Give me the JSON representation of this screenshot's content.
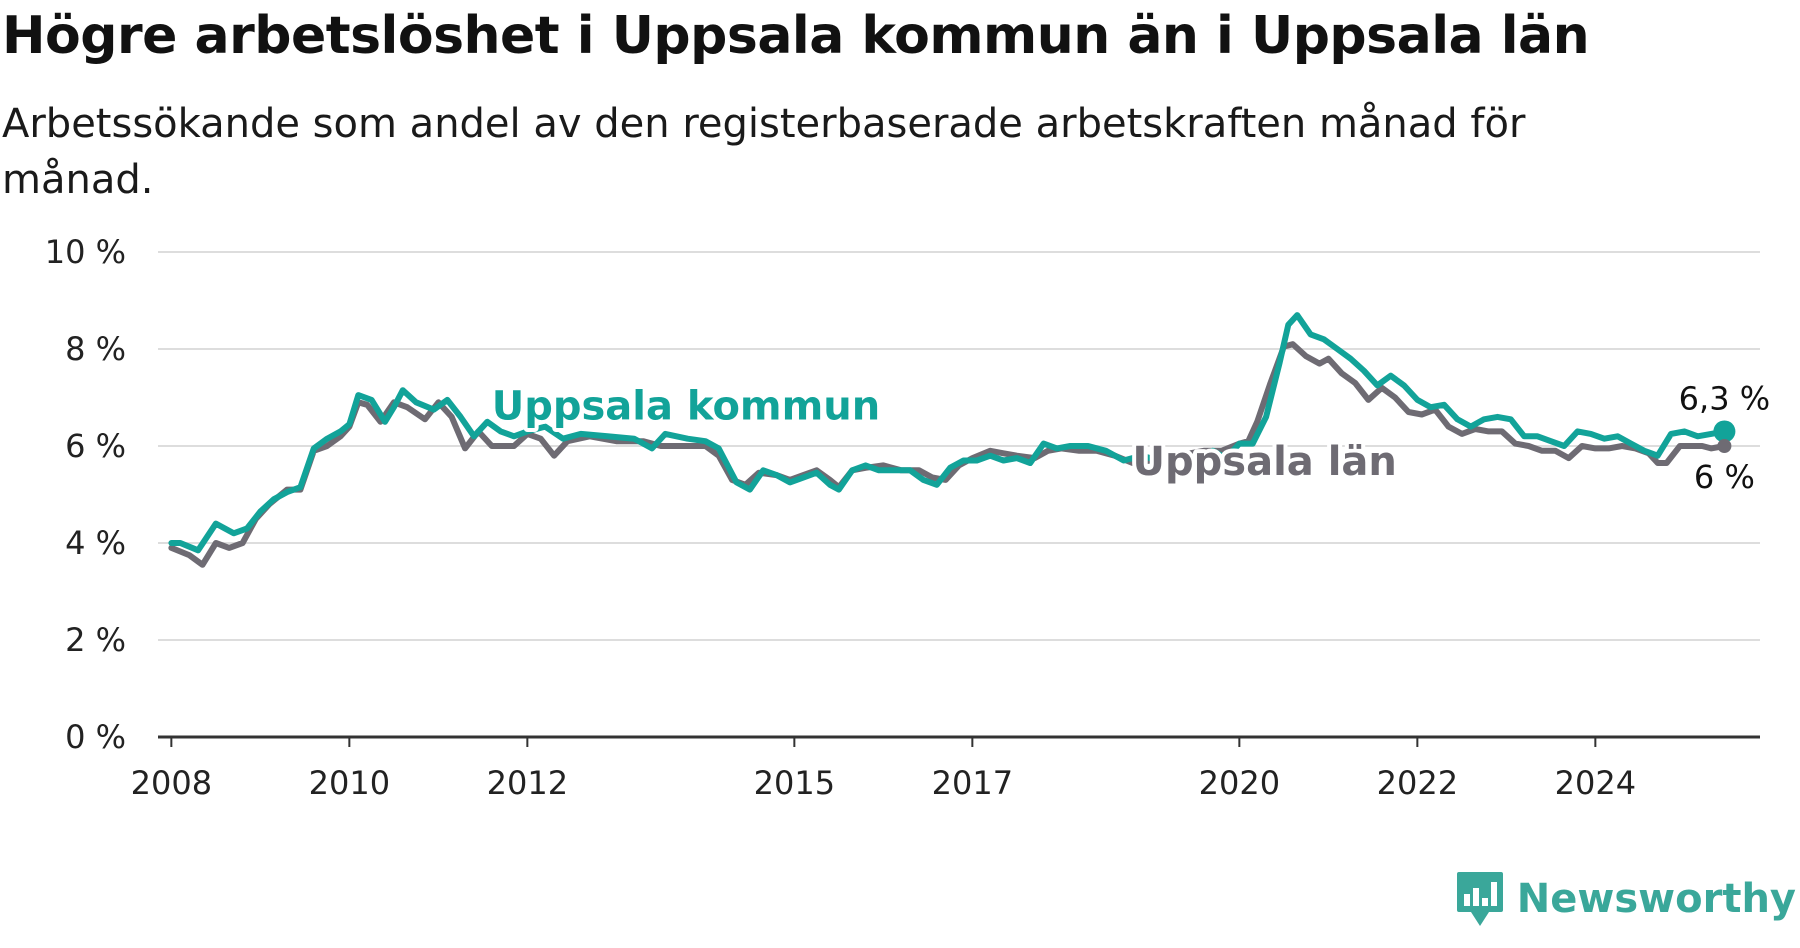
{
  "header": {
    "title": "Högre arbetslöshet i Uppsala kommun än i Uppsala län",
    "subtitle": "Arbetssökande som andel av den registerbaserade arbetskraften månad för månad."
  },
  "brand": {
    "name": "Newsworthy",
    "icon": "newsworthy-logo-icon",
    "color": "#3aa79a"
  },
  "colors": {
    "kommun": "#12a399",
    "lan": "#6e6b73",
    "grid": "#dddddd",
    "axis": "#333333"
  },
  "chart_data": {
    "type": "line",
    "title": "Högre arbetslöshet i Uppsala kommun än i Uppsala län",
    "ylim": [
      0,
      10
    ],
    "xlim": [
      2007.85,
      2025.85
    ],
    "yticks": [
      0,
      2,
      4,
      6,
      8,
      10
    ],
    "ytick_labels": [
      "0 %",
      "2 %",
      "4 %",
      "6 %",
      "8 %",
      "10 %"
    ],
    "xticks": [
      2008,
      2010,
      2012,
      2015,
      2017,
      2020,
      2022,
      2024
    ],
    "xtick_labels": [
      "2008",
      "2010",
      "2012",
      "2015",
      "2017",
      "2020",
      "2022",
      "2024"
    ],
    "grid": true,
    "series": [
      {
        "name": "Uppsala län",
        "end_label": "6 %",
        "points": [
          [
            2008.0,
            3.9
          ],
          [
            2008.2,
            3.75
          ],
          [
            2008.35,
            3.55
          ],
          [
            2008.5,
            4.0
          ],
          [
            2008.65,
            3.9
          ],
          [
            2008.8,
            4.0
          ],
          [
            2008.95,
            4.5
          ],
          [
            2009.1,
            4.8
          ],
          [
            2009.3,
            5.1
          ],
          [
            2009.45,
            5.1
          ],
          [
            2009.6,
            5.9
          ],
          [
            2009.75,
            6.0
          ],
          [
            2009.9,
            6.2
          ],
          [
            2010.0,
            6.4
          ],
          [
            2010.1,
            6.9
          ],
          [
            2010.2,
            6.85
          ],
          [
            2010.35,
            6.5
          ],
          [
            2010.5,
            6.9
          ],
          [
            2010.65,
            6.8
          ],
          [
            2010.85,
            6.55
          ],
          [
            2011.0,
            6.9
          ],
          [
            2011.15,
            6.6
          ],
          [
            2011.3,
            5.95
          ],
          [
            2011.45,
            6.3
          ],
          [
            2011.6,
            6.0
          ],
          [
            2011.85,
            6.0
          ],
          [
            2012.0,
            6.25
          ],
          [
            2012.15,
            6.15
          ],
          [
            2012.3,
            5.8
          ],
          [
            2012.45,
            6.1
          ],
          [
            2012.7,
            6.2
          ],
          [
            2013.0,
            6.1
          ],
          [
            2013.3,
            6.1
          ],
          [
            2013.5,
            6.0
          ],
          [
            2013.8,
            6.0
          ],
          [
            2014.0,
            6.0
          ],
          [
            2014.15,
            5.8
          ],
          [
            2014.3,
            5.3
          ],
          [
            2014.45,
            5.2
          ],
          [
            2014.6,
            5.45
          ],
          [
            2014.8,
            5.4
          ],
          [
            2014.95,
            5.3
          ],
          [
            2015.1,
            5.4
          ],
          [
            2015.25,
            5.5
          ],
          [
            2015.4,
            5.3
          ],
          [
            2015.5,
            5.15
          ],
          [
            2015.65,
            5.5
          ],
          [
            2015.8,
            5.55
          ],
          [
            2016.0,
            5.6
          ],
          [
            2016.2,
            5.5
          ],
          [
            2016.4,
            5.5
          ],
          [
            2016.55,
            5.35
          ],
          [
            2016.7,
            5.3
          ],
          [
            2016.85,
            5.6
          ],
          [
            2017.0,
            5.75
          ],
          [
            2017.2,
            5.9
          ],
          [
            2017.35,
            5.85
          ],
          [
            2017.5,
            5.8
          ],
          [
            2017.7,
            5.75
          ],
          [
            2017.85,
            5.9
          ],
          [
            2018.0,
            5.95
          ],
          [
            2018.2,
            5.9
          ],
          [
            2018.4,
            5.9
          ],
          [
            2018.6,
            5.8
          ],
          [
            2018.8,
            5.65
          ],
          [
            2019.0,
            5.7
          ],
          [
            2019.3,
            5.8
          ],
          [
            2019.6,
            5.9
          ],
          [
            2019.8,
            5.9
          ],
          [
            2020.0,
            6.05
          ],
          [
            2020.1,
            6.1
          ],
          [
            2020.2,
            6.5
          ],
          [
            2020.35,
            7.3
          ],
          [
            2020.5,
            8.05
          ],
          [
            2020.6,
            8.1
          ],
          [
            2020.75,
            7.85
          ],
          [
            2020.9,
            7.7
          ],
          [
            2021.0,
            7.8
          ],
          [
            2021.15,
            7.5
          ],
          [
            2021.3,
            7.3
          ],
          [
            2021.45,
            6.95
          ],
          [
            2021.6,
            7.2
          ],
          [
            2021.75,
            7.0
          ],
          [
            2021.9,
            6.7
          ],
          [
            2022.05,
            6.65
          ],
          [
            2022.2,
            6.75
          ],
          [
            2022.35,
            6.4
          ],
          [
            2022.5,
            6.25
          ],
          [
            2022.65,
            6.35
          ],
          [
            2022.8,
            6.3
          ],
          [
            2022.95,
            6.3
          ],
          [
            2023.1,
            6.05
          ],
          [
            2023.25,
            6.0
          ],
          [
            2023.4,
            5.9
          ],
          [
            2023.55,
            5.9
          ],
          [
            2023.7,
            5.75
          ],
          [
            2023.85,
            6.0
          ],
          [
            2024.0,
            5.95
          ],
          [
            2024.15,
            5.95
          ],
          [
            2024.3,
            6.0
          ],
          [
            2024.45,
            5.95
          ],
          [
            2024.6,
            5.85
          ],
          [
            2024.7,
            5.65
          ],
          [
            2024.8,
            5.65
          ],
          [
            2024.95,
            6.0
          ],
          [
            2025.1,
            6.0
          ],
          [
            2025.2,
            6.0
          ],
          [
            2025.3,
            5.95
          ],
          [
            2025.45,
            6.0
          ]
        ]
      },
      {
        "name": "Uppsala kommun",
        "end_label": "6,3 %",
        "points": [
          [
            2008.0,
            4.0
          ],
          [
            2008.1,
            4.0
          ],
          [
            2008.3,
            3.85
          ],
          [
            2008.5,
            4.4
          ],
          [
            2008.7,
            4.2
          ],
          [
            2008.85,
            4.3
          ],
          [
            2009.0,
            4.65
          ],
          [
            2009.15,
            4.9
          ],
          [
            2009.3,
            5.05
          ],
          [
            2009.45,
            5.15
          ],
          [
            2009.6,
            5.95
          ],
          [
            2009.75,
            6.15
          ],
          [
            2009.9,
            6.3
          ],
          [
            2010.0,
            6.45
          ],
          [
            2010.1,
            7.05
          ],
          [
            2010.25,
            6.95
          ],
          [
            2010.4,
            6.5
          ],
          [
            2010.5,
            6.8
          ],
          [
            2010.6,
            7.15
          ],
          [
            2010.75,
            6.9
          ],
          [
            2010.95,
            6.75
          ],
          [
            2011.1,
            6.95
          ],
          [
            2011.25,
            6.6
          ],
          [
            2011.4,
            6.2
          ],
          [
            2011.55,
            6.5
          ],
          [
            2011.7,
            6.3
          ],
          [
            2011.85,
            6.2
          ],
          [
            2012.0,
            6.3
          ],
          [
            2012.2,
            6.4
          ],
          [
            2012.4,
            6.15
          ],
          [
            2012.6,
            6.25
          ],
          [
            2012.9,
            6.2
          ],
          [
            2013.2,
            6.15
          ],
          [
            2013.4,
            5.95
          ],
          [
            2013.55,
            6.25
          ],
          [
            2013.8,
            6.15
          ],
          [
            2014.0,
            6.1
          ],
          [
            2014.15,
            5.95
          ],
          [
            2014.35,
            5.25
          ],
          [
            2014.5,
            5.1
          ],
          [
            2014.65,
            5.5
          ],
          [
            2014.8,
            5.4
          ],
          [
            2014.95,
            5.25
          ],
          [
            2015.1,
            5.35
          ],
          [
            2015.25,
            5.45
          ],
          [
            2015.4,
            5.2
          ],
          [
            2015.5,
            5.1
          ],
          [
            2015.65,
            5.5
          ],
          [
            2015.8,
            5.6
          ],
          [
            2015.95,
            5.5
          ],
          [
            2016.1,
            5.5
          ],
          [
            2016.3,
            5.5
          ],
          [
            2016.45,
            5.3
          ],
          [
            2016.6,
            5.2
          ],
          [
            2016.75,
            5.55
          ],
          [
            2016.9,
            5.7
          ],
          [
            2017.05,
            5.7
          ],
          [
            2017.2,
            5.8
          ],
          [
            2017.35,
            5.7
          ],
          [
            2017.5,
            5.75
          ],
          [
            2017.65,
            5.65
          ],
          [
            2017.8,
            6.05
          ],
          [
            2017.95,
            5.95
          ],
          [
            2018.1,
            6.0
          ],
          [
            2018.3,
            6.0
          ],
          [
            2018.5,
            5.9
          ],
          [
            2018.7,
            5.7
          ],
          [
            2018.9,
            5.8
          ],
          [
            2019.1,
            5.7
          ],
          [
            2019.3,
            5.8
          ],
          [
            2019.5,
            5.7
          ],
          [
            2019.7,
            5.9
          ],
          [
            2019.85,
            5.75
          ],
          [
            2020.0,
            6.05
          ],
          [
            2020.15,
            6.05
          ],
          [
            2020.3,
            6.6
          ],
          [
            2020.45,
            7.7
          ],
          [
            2020.55,
            8.5
          ],
          [
            2020.65,
            8.7
          ],
          [
            2020.8,
            8.3
          ],
          [
            2020.95,
            8.2
          ],
          [
            2021.1,
            8.0
          ],
          [
            2021.25,
            7.8
          ],
          [
            2021.4,
            7.55
          ],
          [
            2021.55,
            7.25
          ],
          [
            2021.7,
            7.45
          ],
          [
            2021.85,
            7.25
          ],
          [
            2022.0,
            6.95
          ],
          [
            2022.15,
            6.8
          ],
          [
            2022.3,
            6.85
          ],
          [
            2022.45,
            6.55
          ],
          [
            2022.6,
            6.4
          ],
          [
            2022.75,
            6.55
          ],
          [
            2022.9,
            6.6
          ],
          [
            2023.05,
            6.55
          ],
          [
            2023.2,
            6.2
          ],
          [
            2023.35,
            6.2
          ],
          [
            2023.5,
            6.1
          ],
          [
            2023.65,
            6.0
          ],
          [
            2023.8,
            6.3
          ],
          [
            2023.95,
            6.25
          ],
          [
            2024.1,
            6.15
          ],
          [
            2024.25,
            6.2
          ],
          [
            2024.4,
            6.05
          ],
          [
            2024.55,
            5.9
          ],
          [
            2024.7,
            5.8
          ],
          [
            2024.85,
            6.25
          ],
          [
            2025.0,
            6.3
          ],
          [
            2025.15,
            6.2
          ],
          [
            2025.3,
            6.25
          ],
          [
            2025.45,
            6.3
          ]
        ]
      }
    ],
    "annotations": [
      {
        "text": "Uppsala kommun",
        "series": "Uppsala kommun",
        "x": 2011.6,
        "y": 6.55
      },
      {
        "text": "Uppsala län",
        "series": "Uppsala län",
        "x": 2018.8,
        "y": 5.4
      }
    ]
  }
}
